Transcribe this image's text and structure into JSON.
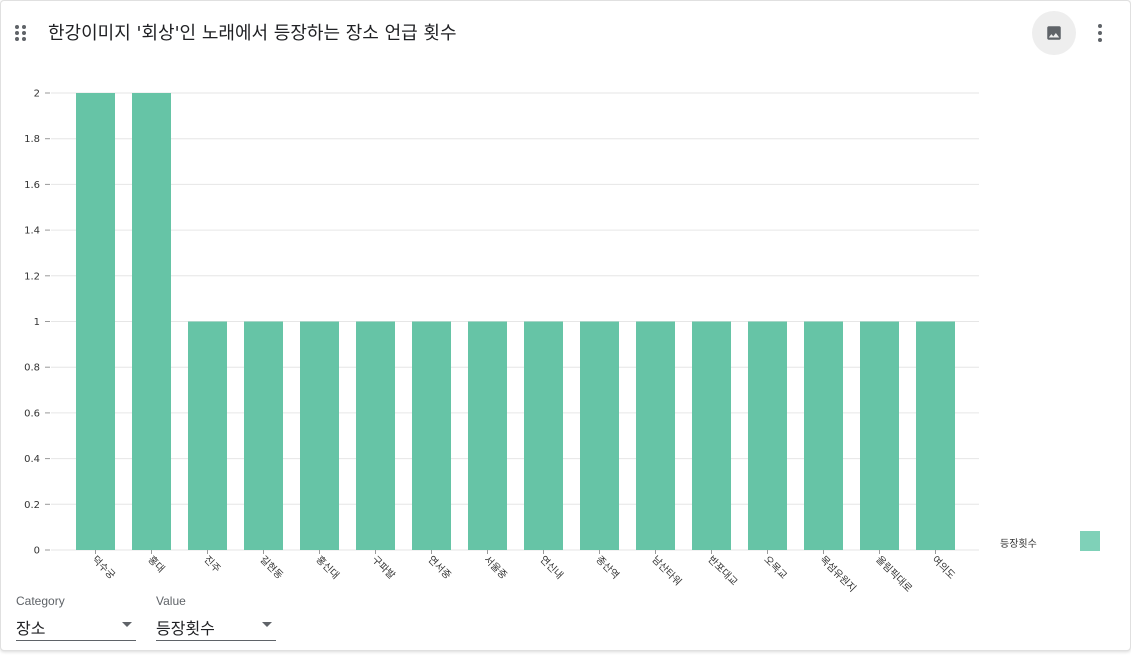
{
  "header": {
    "title": "한강이미지 '회상'인 노래에서 등장하는 장소 언급 횟수",
    "drag_icon": "drag-indicator-icon",
    "image_icon": "image-icon",
    "more_icon": "more-vert-icon",
    "image_button_bg": "#eeeeee"
  },
  "chart_data": {
    "type": "bar",
    "categories": [
      "덕수궁",
      "홍대",
      "진주",
      "길현동",
      "홍신대",
      "구파발",
      "연서중",
      "서울중",
      "연신내",
      "종산역",
      "남산타워",
      "반포대교",
      "오목교",
      "목섬유원지",
      "올림픽대로",
      "여의도"
    ],
    "series": [
      {
        "name": "등장횟수",
        "values": [
          2,
          2,
          1,
          1,
          1,
          1,
          1,
          1,
          1,
          1,
          1,
          1,
          1,
          1,
          1,
          1
        ],
        "color": "#66c4a6"
      }
    ],
    "yticks": [
      "0",
      "0.2",
      "0.4",
      "0.6",
      "0.8",
      "1",
      "1.2",
      "1.4",
      "1.6",
      "1.8",
      "2"
    ],
    "ylim": [
      0,
      2
    ],
    "grid": true,
    "legend_position": "bottom-right",
    "legend_swatch_color": "#7fd1b8",
    "xlabel": "",
    "ylabel": ""
  },
  "controls": {
    "category_label": "Category",
    "category_value": "장소",
    "value_label": "Value",
    "value_value": "등장횟수"
  }
}
